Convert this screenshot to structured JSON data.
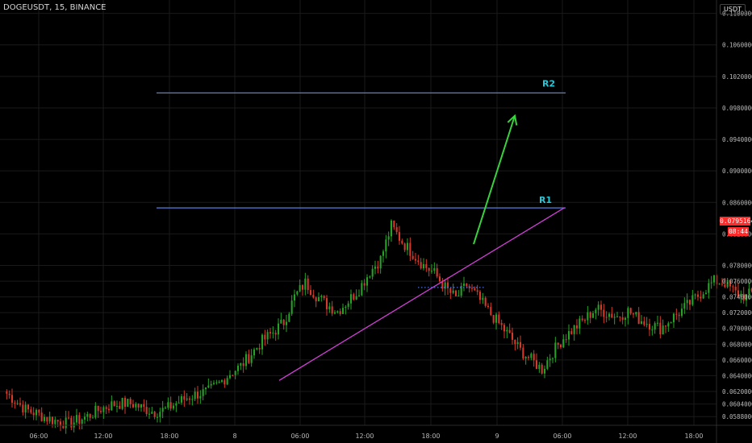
{
  "header": {
    "symbol": "DOGEUSDT",
    "interval": "15",
    "exchange": "BINANCE"
  },
  "price_axis": {
    "currency": "USDT",
    "current_price": "0.0795164",
    "countdown": "08:44"
  },
  "colors": {
    "background": "#000000",
    "grid": "#1a1a1a",
    "axis_text": "#b8b8b8",
    "candle_up": "#26a326",
    "candle_down": "#d63a2a",
    "resistance_line": "#5b7fd6",
    "resistance_label": "#27c6d6",
    "trendline": "#d040d6",
    "arrow": "#39d23d",
    "support_dotted": "#4a6bd6",
    "price_badge": "#ff2b2b"
  },
  "chart_data": {
    "type": "candlestick",
    "title": "",
    "xlabel": "",
    "ylabel": "",
    "ylim": [
      0.0577,
      0.1117
    ],
    "y_ticks": [
      "0.1100000",
      "0.1060000",
      "0.1020000",
      "0.0980000",
      "0.0940000",
      "0.0900000",
      "0.0860000",
      "0.0820000",
      "0.0780000",
      "0.0760000",
      "0.0740000",
      "0.0720000",
      "0.0700000",
      "0.0680000",
      "0.0660000",
      "0.0640000",
      "0.0620000",
      "0.0604000",
      "0.0588000"
    ],
    "x_ticks": [
      "06:00",
      "12:00",
      "18:00",
      "8",
      "06:00",
      "12:00",
      "18:00",
      "9",
      "06:00",
      "12:00",
      "18:00"
    ],
    "annotations": [
      {
        "type": "hline",
        "label": "R1",
        "y": 0.0853,
        "x_start": "day1 17:00",
        "x_end": "day3 06:00"
      },
      {
        "type": "hline",
        "label": "R2",
        "y": 0.0999,
        "x_start": "day1 17:00",
        "x_end": "day3 06:00"
      },
      {
        "type": "trendline",
        "from": {
          "x": "day2 04:00",
          "y": 0.0634
        },
        "to": {
          "x": "day3 06:00",
          "y": 0.0853
        }
      },
      {
        "type": "dotted",
        "y": 0.0752,
        "x_start": "day2 15:45",
        "x_end": "day2 22:00"
      },
      {
        "type": "arrow",
        "from": {
          "x": "day2 22:30",
          "y": 0.0807
        },
        "to": {
          "x": "day3 02:00",
          "y": 0.097
        }
      }
    ],
    "candles_note": "15-minute DOGEUSDT candles; path of closes (x in hours from first candle, y in USDT)",
    "path": [
      [
        0,
        0.062
      ],
      [
        1,
        0.0609
      ],
      [
        2,
        0.0597
      ],
      [
        3,
        0.0592
      ],
      [
        4,
        0.0586
      ],
      [
        5,
        0.0582
      ],
      [
        6,
        0.0579
      ],
      [
        7,
        0.0584
      ],
      [
        8,
        0.059
      ],
      [
        9,
        0.0598
      ],
      [
        10,
        0.0603
      ],
      [
        11,
        0.0605
      ],
      [
        12,
        0.0604
      ],
      [
        13,
        0.0598
      ],
      [
        14,
        0.0594
      ],
      [
        15,
        0.0597
      ],
      [
        16,
        0.0605
      ],
      [
        17,
        0.0612
      ],
      [
        18,
        0.0617
      ],
      [
        19,
        0.062
      ],
      [
        20,
        0.063
      ],
      [
        21,
        0.0643
      ],
      [
        22,
        0.0652
      ],
      [
        23,
        0.0668
      ],
      [
        24,
        0.0684
      ],
      [
        25,
        0.0695
      ],
      [
        26,
        0.0708
      ],
      [
        27,
        0.074
      ],
      [
        28,
        0.0758
      ],
      [
        29,
        0.0742
      ],
      [
        30,
        0.073
      ],
      [
        31,
        0.0722
      ],
      [
        32,
        0.0735
      ],
      [
        33,
        0.075
      ],
      [
        34,
        0.0772
      ],
      [
        35,
        0.0788
      ],
      [
        36,
        0.083
      ],
      [
        37,
        0.081
      ],
      [
        38,
        0.0795
      ],
      [
        39,
        0.078
      ],
      [
        40,
        0.077
      ],
      [
        41,
        0.0752
      ],
      [
        42,
        0.0738
      ],
      [
        43,
        0.0755
      ],
      [
        44,
        0.074
      ],
      [
        45,
        0.0722
      ],
      [
        46,
        0.0706
      ],
      [
        47,
        0.069
      ],
      [
        48,
        0.0672
      ],
      [
        49,
        0.066
      ],
      [
        50,
        0.0648
      ],
      [
        51,
        0.067
      ],
      [
        52,
        0.0688
      ],
      [
        53,
        0.07
      ],
      [
        54,
        0.0712
      ],
      [
        55,
        0.0725
      ],
      [
        56,
        0.072
      ],
      [
        57,
        0.0715
      ],
      [
        58,
        0.0722
      ],
      [
        59,
        0.0712
      ],
      [
        60,
        0.0706
      ],
      [
        61,
        0.07
      ],
      [
        62,
        0.0712
      ],
      [
        63,
        0.0723
      ],
      [
        64,
        0.0735
      ],
      [
        65,
        0.0748
      ],
      [
        66,
        0.076
      ],
      [
        67,
        0.0758
      ],
      [
        68,
        0.0745
      ],
      [
        69,
        0.074
      ],
      [
        70,
        0.0752
      ],
      [
        71,
        0.0745
      ],
      [
        72,
        0.0738
      ],
      [
        73,
        0.0742
      ],
      [
        74,
        0.0755
      ],
      [
        75,
        0.077
      ],
      [
        76,
        0.079
      ],
      [
        77,
        0.0812
      ],
      [
        78,
        0.0834
      ],
      [
        79,
        0.0846
      ],
      [
        80,
        0.084
      ],
      [
        81,
        0.0828
      ],
      [
        82,
        0.0815
      ],
      [
        83,
        0.081
      ],
      [
        84,
        0.08
      ],
      [
        85,
        0.079
      ],
      [
        86,
        0.0782
      ],
      [
        87,
        0.0772
      ],
      [
        88,
        0.0778
      ],
      [
        89,
        0.079
      ],
      [
        90,
        0.08
      ],
      [
        91,
        0.0806
      ],
      [
        92,
        0.0802
      ],
      [
        93,
        0.0798
      ],
      [
        94,
        0.0795
      ]
    ]
  }
}
